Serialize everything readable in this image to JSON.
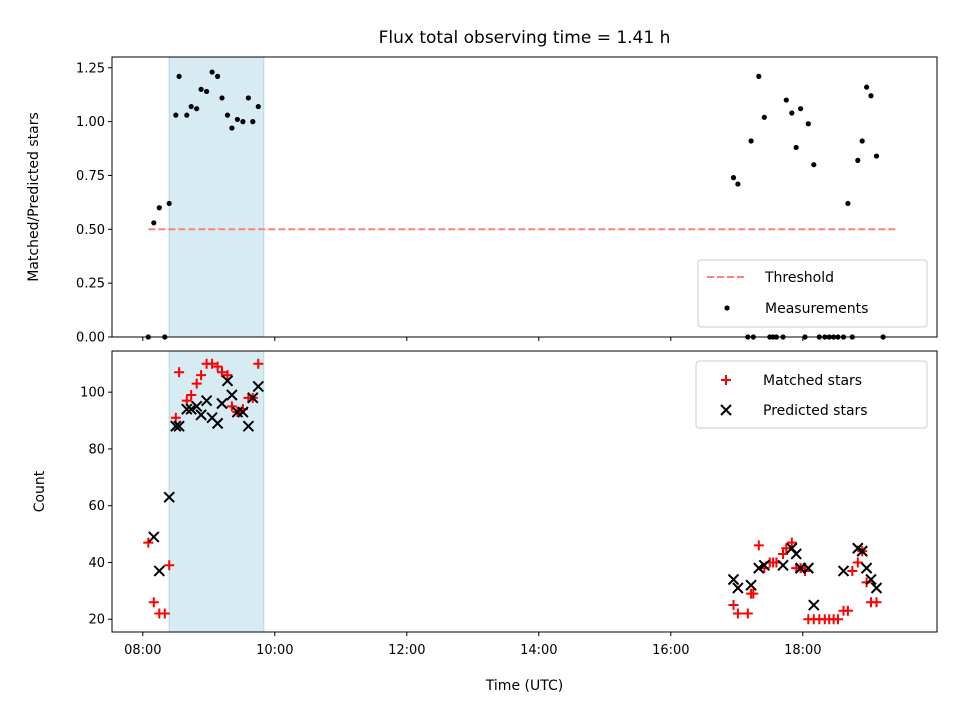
{
  "chart_data": [
    {
      "type": "scatter",
      "title": "Flux total observing time = 1.41 h",
      "xlabel": "",
      "ylabel": "Matched/Predicted stars",
      "x_unit": "time (UTC), HH:MM",
      "xlim": [
        "07:32",
        "20:02"
      ],
      "ylim": [
        0,
        1.3
      ],
      "yticks": [
        "0.00",
        "0.25",
        "0.50",
        "0.75",
        "1.00",
        "1.25"
      ],
      "highlight_span": [
        "08:24",
        "09:50"
      ],
      "highlight_color": "#add8e6",
      "grid": false,
      "legend_position": "lower-right",
      "threshold": {
        "name": "Threshold",
        "value": 0.5,
        "x_range": [
          "08:05",
          "19:25"
        ],
        "color": "#ff7f7f",
        "style": "dashed"
      },
      "series": [
        {
          "name": "Measurements",
          "color": "#000000",
          "marker": "dot",
          "points": [
            [
              "08:05",
              0.0
            ],
            [
              "08:10",
              0.53
            ],
            [
              "08:15",
              0.6
            ],
            [
              "08:20",
              0.0
            ],
            [
              "08:24",
              0.62
            ],
            [
              "08:30",
              1.03
            ],
            [
              "08:33",
              1.21
            ],
            [
              "08:40",
              1.03
            ],
            [
              "08:44",
              1.07
            ],
            [
              "08:49",
              1.06
            ],
            [
              "08:53",
              1.15
            ],
            [
              "08:58",
              1.14
            ],
            [
              "09:03",
              1.23
            ],
            [
              "09:08",
              1.21
            ],
            [
              "09:12",
              1.11
            ],
            [
              "09:17",
              1.03
            ],
            [
              "09:21",
              0.97
            ],
            [
              "09:26",
              1.01
            ],
            [
              "09:31",
              1.0
            ],
            [
              "09:36",
              1.11
            ],
            [
              "09:40",
              1.0
            ],
            [
              "09:45",
              1.07
            ],
            [
              "16:57",
              0.74
            ],
            [
              "17:01",
              0.71
            ],
            [
              "17:10",
              0.0
            ],
            [
              "17:13",
              0.91
            ],
            [
              "17:15",
              0.0
            ],
            [
              "17:20",
              1.21
            ],
            [
              "17:25",
              1.02
            ],
            [
              "17:30",
              0.0
            ],
            [
              "17:33",
              0.0
            ],
            [
              "17:36",
              0.0
            ],
            [
              "17:42",
              0.0
            ],
            [
              "17:45",
              1.1
            ],
            [
              "17:50",
              1.04
            ],
            [
              "17:54",
              0.88
            ],
            [
              "17:58",
              1.06
            ],
            [
              "18:02",
              0.0
            ],
            [
              "18:05",
              0.99
            ],
            [
              "18:10",
              0.8
            ],
            [
              "18:15",
              0.0
            ],
            [
              "18:20",
              0.0
            ],
            [
              "18:24",
              0.0
            ],
            [
              "18:28",
              0.0
            ],
            [
              "18:32",
              0.0
            ],
            [
              "18:37",
              0.0
            ],
            [
              "18:41",
              0.62
            ],
            [
              "18:45",
              0.0
            ],
            [
              "18:50",
              0.82
            ],
            [
              "18:54",
              0.91
            ],
            [
              "18:58",
              1.16
            ],
            [
              "19:02",
              1.12
            ],
            [
              "19:07",
              0.84
            ],
            [
              "19:13",
              0.0
            ]
          ]
        }
      ]
    },
    {
      "type": "scatter",
      "title": "",
      "xlabel": "Time (UTC)",
      "ylabel": "Count",
      "x_unit": "time (UTC), HH:MM",
      "xlim": [
        "07:32",
        "20:02"
      ],
      "ylim": [
        15.5,
        114.5
      ],
      "yticks": [
        "20",
        "40",
        "60",
        "80",
        "100"
      ],
      "xticks": [
        "08:00",
        "10:00",
        "12:00",
        "14:00",
        "16:00",
        "18:00"
      ],
      "highlight_span": [
        "08:24",
        "09:50"
      ],
      "highlight_color": "#add8e6",
      "grid": false,
      "legend_position": "upper-right",
      "series": [
        {
          "name": "Matched stars",
          "color": "#ff0000",
          "marker": "plus",
          "points": [
            [
              "08:05",
              47
            ],
            [
              "08:10",
              26
            ],
            [
              "08:15",
              22
            ],
            [
              "08:20",
              22
            ],
            [
              "08:24",
              39
            ],
            [
              "08:30",
              91
            ],
            [
              "08:33",
              107
            ],
            [
              "08:40",
              97
            ],
            [
              "08:44",
              99
            ],
            [
              "08:49",
              103
            ],
            [
              "08:53",
              106
            ],
            [
              "08:58",
              110
            ],
            [
              "09:03",
              110
            ],
            [
              "09:08",
              109
            ],
            [
              "09:12",
              107
            ],
            [
              "09:17",
              106
            ],
            [
              "09:21",
              95
            ],
            [
              "09:26",
              93
            ],
            [
              "09:31",
              94
            ],
            [
              "09:36",
              98
            ],
            [
              "09:40",
              98
            ],
            [
              "09:45",
              110
            ],
            [
              "16:57",
              25
            ],
            [
              "17:01",
              22
            ],
            [
              "17:10",
              22
            ],
            [
              "17:13",
              29
            ],
            [
              "17:15",
              29
            ],
            [
              "17:20",
              46
            ],
            [
              "17:25",
              38
            ],
            [
              "17:30",
              40
            ],
            [
              "17:33",
              40
            ],
            [
              "17:36",
              40
            ],
            [
              "17:42",
              43
            ],
            [
              "17:45",
              45
            ],
            [
              "17:50",
              47
            ],
            [
              "17:54",
              38
            ],
            [
              "17:58",
              38
            ],
            [
              "18:02",
              37
            ],
            [
              "18:05",
              20
            ],
            [
              "18:10",
              20
            ],
            [
              "18:15",
              20
            ],
            [
              "18:20",
              20
            ],
            [
              "18:24",
              20
            ],
            [
              "18:28",
              20
            ],
            [
              "18:32",
              20
            ],
            [
              "18:37",
              23
            ],
            [
              "18:41",
              23
            ],
            [
              "18:45",
              37
            ],
            [
              "18:50",
              40
            ],
            [
              "18:54",
              44
            ],
            [
              "18:58",
              33
            ],
            [
              "19:02",
              26
            ],
            [
              "19:07",
              26
            ]
          ]
        },
        {
          "name": "Predicted stars",
          "color": "#000000",
          "marker": "x",
          "points": [
            [
              "08:10",
              49
            ],
            [
              "08:15",
              37
            ],
            [
              "08:24",
              63
            ],
            [
              "08:30",
              88
            ],
            [
              "08:33",
              88
            ],
            [
              "08:40",
              94
            ],
            [
              "08:44",
              94
            ],
            [
              "08:49",
              95
            ],
            [
              "08:53",
              92
            ],
            [
              "08:58",
              97
            ],
            [
              "09:03",
              91
            ],
            [
              "09:08",
              89
            ],
            [
              "09:12",
              96
            ],
            [
              "09:17",
              104
            ],
            [
              "09:21",
              99
            ],
            [
              "09:26",
              93
            ],
            [
              "09:31",
              93
            ],
            [
              "09:36",
              88
            ],
            [
              "09:40",
              98
            ],
            [
              "09:45",
              102
            ],
            [
              "16:57",
              34
            ],
            [
              "17:01",
              31
            ],
            [
              "17:13",
              32
            ],
            [
              "17:20",
              38
            ],
            [
              "17:25",
              39
            ],
            [
              "17:42",
              39
            ],
            [
              "17:50",
              45
            ],
            [
              "17:54",
              43
            ],
            [
              "17:58",
              38
            ],
            [
              "18:05",
              38
            ],
            [
              "18:10",
              25
            ],
            [
              "18:37",
              37
            ],
            [
              "18:50",
              45
            ],
            [
              "18:54",
              44
            ],
            [
              "18:58",
              38
            ],
            [
              "19:02",
              34
            ],
            [
              "19:07",
              31
            ]
          ]
        }
      ]
    }
  ]
}
